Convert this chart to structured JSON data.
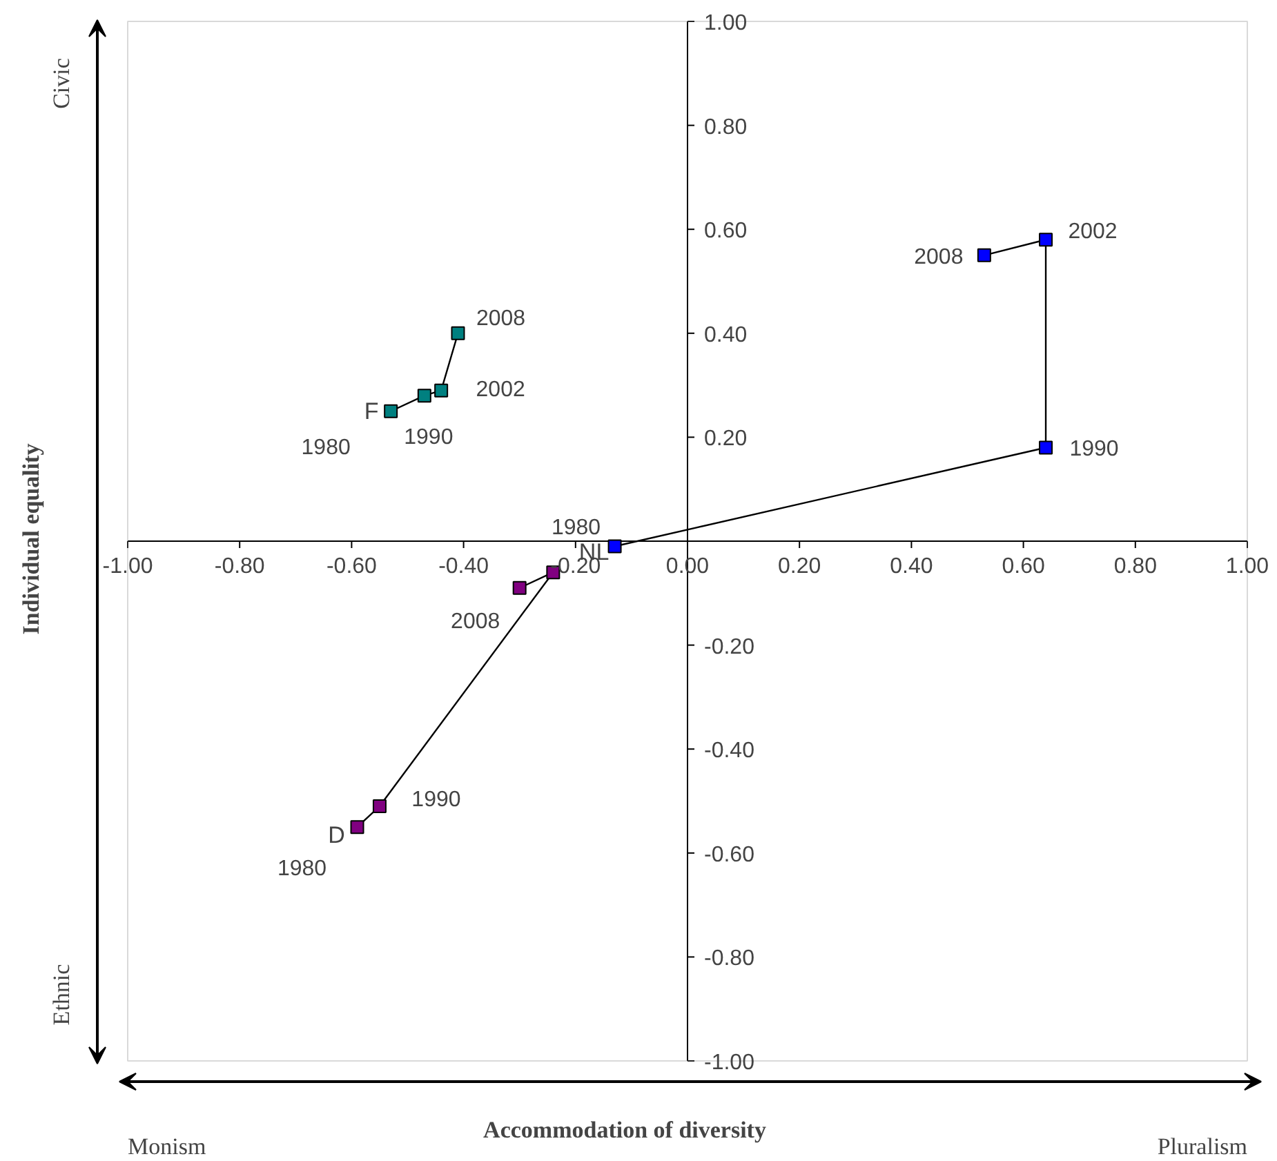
{
  "chart_data": {
    "type": "line",
    "xlabel": "Accommodation of diversity",
    "ylabel": "Individual equality",
    "annotations": [
      "Civic",
      "Ethnic",
      "Monism",
      "Pluralism",
      {
        "text": "1980",
        "x": -0.53,
        "y": 0.25
      },
      {
        "text": "1990",
        "x": -0.47,
        "y": 0.28
      },
      {
        "text": "2002",
        "x": -0.44,
        "y": 0.29
      },
      {
        "text": "2008",
        "x": -0.41,
        "y": 0.4
      },
      {
        "text": "1980",
        "x": -0.59,
        "y": -0.55
      },
      {
        "text": "1990",
        "x": -0.55,
        "y": -0.51
      },
      {
        "text": "2008",
        "x": -0.3,
        "y": -0.09
      },
      {
        "text": "1980",
        "x": -0.13,
        "y": -0.01
      },
      {
        "text": "1990",
        "x": 0.64,
        "y": 0.18
      },
      {
        "text": "2002",
        "x": 0.64,
        "y": 0.58
      },
      {
        "text": "2008",
        "x": 0.53,
        "y": 0.55
      }
    ],
    "xlim": [
      -1,
      1
    ],
    "ylim": [
      -1,
      1
    ],
    "xticks": [
      {
        "value": -1,
        "label": "-1.00"
      },
      {
        "value": -0.8,
        "label": "-0.80"
      },
      {
        "value": -0.6,
        "label": "-0.60"
      },
      {
        "value": -0.4,
        "label": "-0.40"
      },
      {
        "value": -0.2,
        "label": "-0.20"
      },
      {
        "value": 0,
        "label": "0.00"
      },
      {
        "value": 0.2,
        "label": "0.20"
      },
      {
        "value": 0.4,
        "label": "0.40"
      },
      {
        "value": 0.6,
        "label": "0.60"
      },
      {
        "value": 0.8,
        "label": "0.80"
      },
      {
        "value": 1,
        "label": "1.00"
      }
    ],
    "yticks": [
      {
        "value": -1,
        "label": "-1.00"
      },
      {
        "value": -0.8,
        "label": "-0.80"
      },
      {
        "value": -0.6,
        "label": "-0.60"
      },
      {
        "value": -0.4,
        "label": "-0.40"
      },
      {
        "value": -0.2,
        "label": "-0.20"
      },
      {
        "value": 0,
        "label": null
      },
      {
        "value": 0.2,
        "label": "0.20"
      },
      {
        "value": 0.4,
        "label": "0.40"
      },
      {
        "value": 0.6,
        "label": "0.60"
      },
      {
        "value": 0.8,
        "label": "0.80"
      },
      {
        "value": 1,
        "label": "1.00"
      }
    ],
    "marker": "square",
    "line_style": "solid",
    "grid": false,
    "series": [
      {
        "name": "F",
        "color": "#008080",
        "x": [
          -0.53,
          -0.47,
          -0.44,
          -0.41
        ],
        "values": [
          0.25,
          0.28,
          0.29,
          0.4
        ]
      },
      {
        "name": "D",
        "color": "#800080",
        "x": [
          -0.59,
          -0.55,
          -0.24,
          -0.3
        ],
        "values": [
          -0.55,
          -0.51,
          -0.06,
          -0.09
        ]
      },
      {
        "name": "NL",
        "color": "#0000ff",
        "x": [
          -0.13,
          0.64,
          0.64,
          0.53
        ],
        "values": [
          -0.01,
          0.18,
          0.58,
          0.55
        ]
      }
    ]
  }
}
